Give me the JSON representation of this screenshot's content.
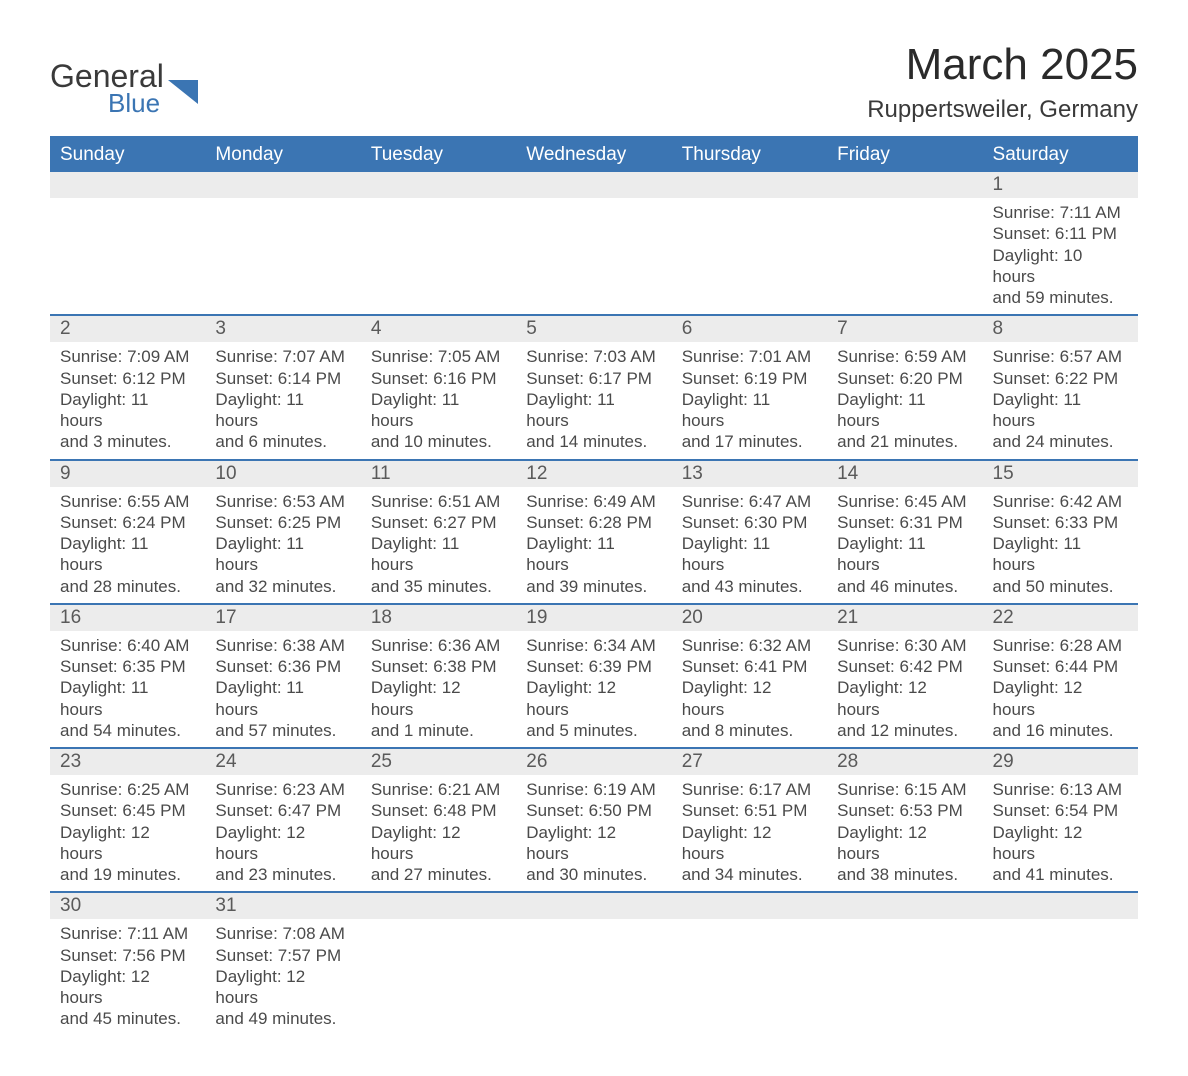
{
  "brand": {
    "word1": "General",
    "word2": "Blue",
    "accent_color": "#3b75b3"
  },
  "title": "March 2025",
  "location": "Ruppertsweiler, Germany",
  "colors": {
    "header_bg": "#3b75b3",
    "header_text": "#ffffff",
    "daynum_bg": "#ececec",
    "border": "#3b75b3",
    "body_text": "#4a4a4a"
  },
  "day_headers": [
    "Sunday",
    "Monday",
    "Tuesday",
    "Wednesday",
    "Thursday",
    "Friday",
    "Saturday"
  ],
  "weeks": [
    [
      null,
      null,
      null,
      null,
      null,
      null,
      {
        "n": "1",
        "sr": "Sunrise: 7:11 AM",
        "ss": "Sunset: 6:11 PM",
        "d1": "Daylight: 10 hours",
        "d2": "and 59 minutes."
      }
    ],
    [
      {
        "n": "2",
        "sr": "Sunrise: 7:09 AM",
        "ss": "Sunset: 6:12 PM",
        "d1": "Daylight: 11 hours",
        "d2": "and 3 minutes."
      },
      {
        "n": "3",
        "sr": "Sunrise: 7:07 AM",
        "ss": "Sunset: 6:14 PM",
        "d1": "Daylight: 11 hours",
        "d2": "and 6 minutes."
      },
      {
        "n": "4",
        "sr": "Sunrise: 7:05 AM",
        "ss": "Sunset: 6:16 PM",
        "d1": "Daylight: 11 hours",
        "d2": "and 10 minutes."
      },
      {
        "n": "5",
        "sr": "Sunrise: 7:03 AM",
        "ss": "Sunset: 6:17 PM",
        "d1": "Daylight: 11 hours",
        "d2": "and 14 minutes."
      },
      {
        "n": "6",
        "sr": "Sunrise: 7:01 AM",
        "ss": "Sunset: 6:19 PM",
        "d1": "Daylight: 11 hours",
        "d2": "and 17 minutes."
      },
      {
        "n": "7",
        "sr": "Sunrise: 6:59 AM",
        "ss": "Sunset: 6:20 PM",
        "d1": "Daylight: 11 hours",
        "d2": "and 21 minutes."
      },
      {
        "n": "8",
        "sr": "Sunrise: 6:57 AM",
        "ss": "Sunset: 6:22 PM",
        "d1": "Daylight: 11 hours",
        "d2": "and 24 minutes."
      }
    ],
    [
      {
        "n": "9",
        "sr": "Sunrise: 6:55 AM",
        "ss": "Sunset: 6:24 PM",
        "d1": "Daylight: 11 hours",
        "d2": "and 28 minutes."
      },
      {
        "n": "10",
        "sr": "Sunrise: 6:53 AM",
        "ss": "Sunset: 6:25 PM",
        "d1": "Daylight: 11 hours",
        "d2": "and 32 minutes."
      },
      {
        "n": "11",
        "sr": "Sunrise: 6:51 AM",
        "ss": "Sunset: 6:27 PM",
        "d1": "Daylight: 11 hours",
        "d2": "and 35 minutes."
      },
      {
        "n": "12",
        "sr": "Sunrise: 6:49 AM",
        "ss": "Sunset: 6:28 PM",
        "d1": "Daylight: 11 hours",
        "d2": "and 39 minutes."
      },
      {
        "n": "13",
        "sr": "Sunrise: 6:47 AM",
        "ss": "Sunset: 6:30 PM",
        "d1": "Daylight: 11 hours",
        "d2": "and 43 minutes."
      },
      {
        "n": "14",
        "sr": "Sunrise: 6:45 AM",
        "ss": "Sunset: 6:31 PM",
        "d1": "Daylight: 11 hours",
        "d2": "and 46 minutes."
      },
      {
        "n": "15",
        "sr": "Sunrise: 6:42 AM",
        "ss": "Sunset: 6:33 PM",
        "d1": "Daylight: 11 hours",
        "d2": "and 50 minutes."
      }
    ],
    [
      {
        "n": "16",
        "sr": "Sunrise: 6:40 AM",
        "ss": "Sunset: 6:35 PM",
        "d1": "Daylight: 11 hours",
        "d2": "and 54 minutes."
      },
      {
        "n": "17",
        "sr": "Sunrise: 6:38 AM",
        "ss": "Sunset: 6:36 PM",
        "d1": "Daylight: 11 hours",
        "d2": "and 57 minutes."
      },
      {
        "n": "18",
        "sr": "Sunrise: 6:36 AM",
        "ss": "Sunset: 6:38 PM",
        "d1": "Daylight: 12 hours",
        "d2": "and 1 minute."
      },
      {
        "n": "19",
        "sr": "Sunrise: 6:34 AM",
        "ss": "Sunset: 6:39 PM",
        "d1": "Daylight: 12 hours",
        "d2": "and 5 minutes."
      },
      {
        "n": "20",
        "sr": "Sunrise: 6:32 AM",
        "ss": "Sunset: 6:41 PM",
        "d1": "Daylight: 12 hours",
        "d2": "and 8 minutes."
      },
      {
        "n": "21",
        "sr": "Sunrise: 6:30 AM",
        "ss": "Sunset: 6:42 PM",
        "d1": "Daylight: 12 hours",
        "d2": "and 12 minutes."
      },
      {
        "n": "22",
        "sr": "Sunrise: 6:28 AM",
        "ss": "Sunset: 6:44 PM",
        "d1": "Daylight: 12 hours",
        "d2": "and 16 minutes."
      }
    ],
    [
      {
        "n": "23",
        "sr": "Sunrise: 6:25 AM",
        "ss": "Sunset: 6:45 PM",
        "d1": "Daylight: 12 hours",
        "d2": "and 19 minutes."
      },
      {
        "n": "24",
        "sr": "Sunrise: 6:23 AM",
        "ss": "Sunset: 6:47 PM",
        "d1": "Daylight: 12 hours",
        "d2": "and 23 minutes."
      },
      {
        "n": "25",
        "sr": "Sunrise: 6:21 AM",
        "ss": "Sunset: 6:48 PM",
        "d1": "Daylight: 12 hours",
        "d2": "and 27 minutes."
      },
      {
        "n": "26",
        "sr": "Sunrise: 6:19 AM",
        "ss": "Sunset: 6:50 PM",
        "d1": "Daylight: 12 hours",
        "d2": "and 30 minutes."
      },
      {
        "n": "27",
        "sr": "Sunrise: 6:17 AM",
        "ss": "Sunset: 6:51 PM",
        "d1": "Daylight: 12 hours",
        "d2": "and 34 minutes."
      },
      {
        "n": "28",
        "sr": "Sunrise: 6:15 AM",
        "ss": "Sunset: 6:53 PM",
        "d1": "Daylight: 12 hours",
        "d2": "and 38 minutes."
      },
      {
        "n": "29",
        "sr": "Sunrise: 6:13 AM",
        "ss": "Sunset: 6:54 PM",
        "d1": "Daylight: 12 hours",
        "d2": "and 41 minutes."
      }
    ],
    [
      {
        "n": "30",
        "sr": "Sunrise: 7:11 AM",
        "ss": "Sunset: 7:56 PM",
        "d1": "Daylight: 12 hours",
        "d2": "and 45 minutes."
      },
      {
        "n": "31",
        "sr": "Sunrise: 7:08 AM",
        "ss": "Sunset: 7:57 PM",
        "d1": "Daylight: 12 hours",
        "d2": "and 49 minutes."
      },
      null,
      null,
      null,
      null,
      null
    ]
  ]
}
